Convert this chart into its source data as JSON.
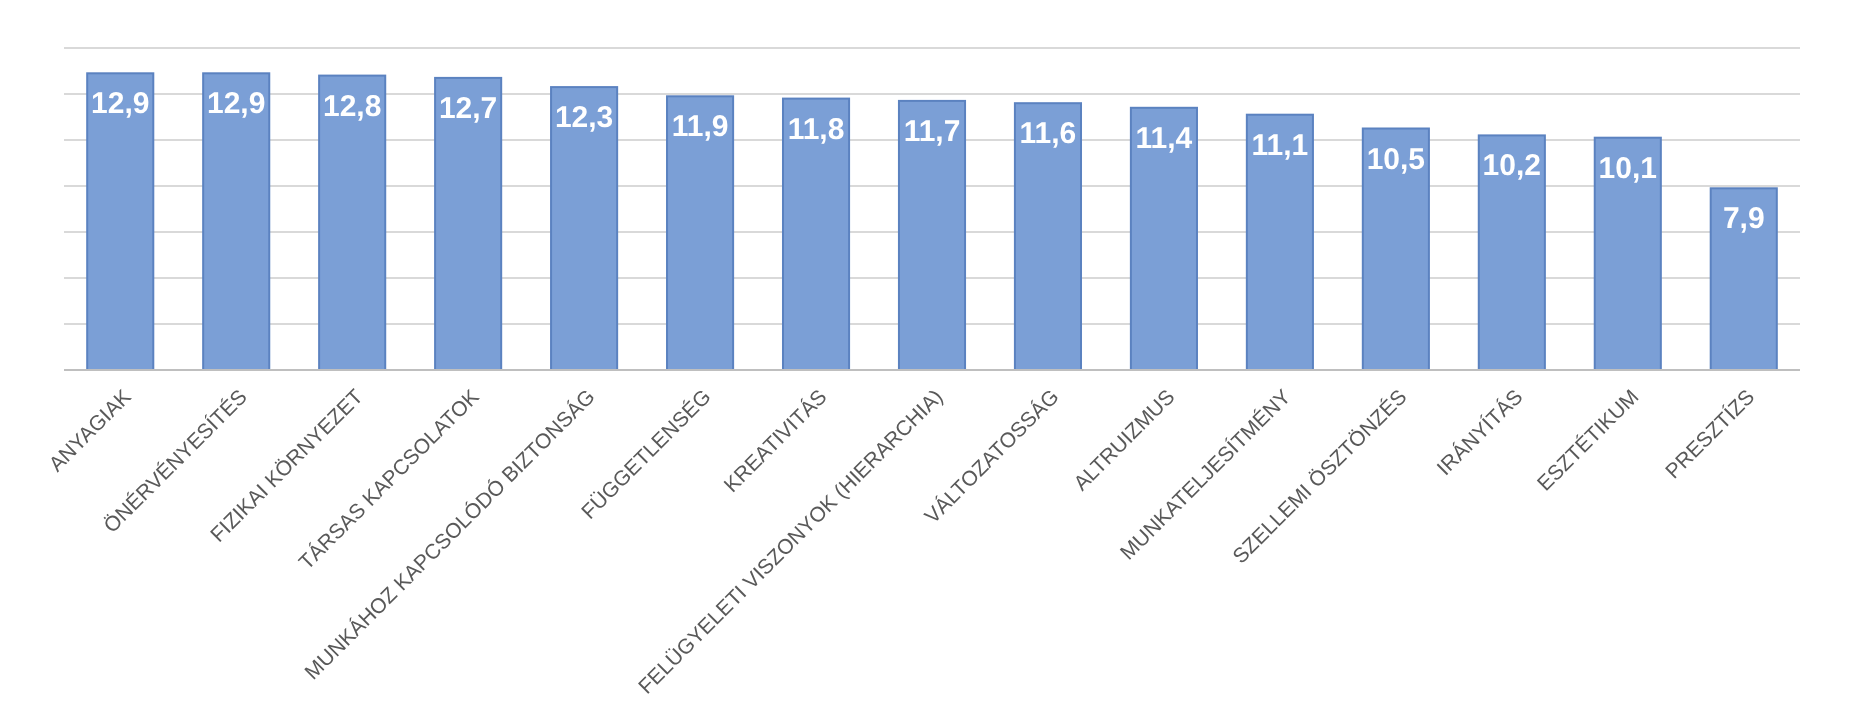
{
  "chart_data": {
    "type": "bar",
    "categories": [
      "ANYAGIAK",
      "ÖNÉRVÉNYESÍTÉS",
      "FIZIKAI KÖRNYEZET",
      "TÁRSAS KAPCSOLATOK",
      "MUNKÁHOZ KAPCSOLÓDÓ BIZTONSÁG",
      "FÜGGETLENSÉG",
      "KREATIVITÁS",
      "FELÜGYELETI VISZONYOK (HIERARCHIA)",
      "VÁLTOZATOSSÁG",
      "ALTRUIZMUS",
      "MUNKATELJESÍTMÉNY",
      "SZELLEMI ÖSZTÖNZÉS",
      "IRÁNYÍTÁS",
      "ESZTÉTIKUM",
      "PRESZTÍZS"
    ],
    "values": [
      12.9,
      12.9,
      12.8,
      12.7,
      12.3,
      11.9,
      11.8,
      11.7,
      11.6,
      11.4,
      11.1,
      10.5,
      10.2,
      10.1,
      7.9
    ],
    "value_labels": [
      "12,9",
      "12,9",
      "12,8",
      "12,7",
      "12,3",
      "11,9",
      "11,8",
      "11,7",
      "11,6",
      "11,4",
      "11,1",
      "10,5",
      "10,2",
      "10,1",
      "7,9"
    ],
    "color": "#7b9fd6",
    "ylim": [
      0,
      14
    ],
    "yticks": [
      {
        "value": 0,
        "label": null
      },
      {
        "value": 2,
        "label": null
      },
      {
        "value": 4,
        "label": null
      },
      {
        "value": 6,
        "label": null
      },
      {
        "value": 8,
        "label": null
      },
      {
        "value": 10,
        "label": null
      },
      {
        "value": 12,
        "label": null
      },
      {
        "value": 14,
        "label": null
      }
    ],
    "grid": "y",
    "tick_labels": "x"
  }
}
